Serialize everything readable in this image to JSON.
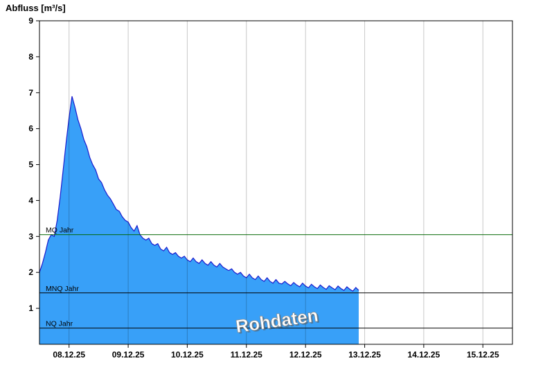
{
  "title": "Abfluss [m³/s]",
  "chart_data": {
    "type": "area",
    "series_name": "Abfluss",
    "title": "Abfluss [m³/s]",
    "x_domain": [
      7.5,
      15.5
    ],
    "y_domain": [
      0,
      9
    ],
    "t_start": 7.5,
    "t_step": 0.05,
    "values": [
      2.0,
      2.25,
      2.55,
      2.9,
      3.05,
      3.0,
      3.45,
      4.1,
      4.85,
      5.6,
      6.3,
      6.9,
      6.6,
      6.25,
      6.0,
      5.7,
      5.5,
      5.2,
      5.0,
      4.85,
      4.6,
      4.5,
      4.3,
      4.15,
      4.05,
      3.9,
      3.75,
      3.7,
      3.55,
      3.45,
      3.4,
      3.25,
      3.15,
      3.3,
      3.05,
      2.95,
      2.9,
      2.95,
      2.8,
      2.75,
      2.8,
      2.65,
      2.6,
      2.7,
      2.55,
      2.5,
      2.55,
      2.45,
      2.4,
      2.45,
      2.35,
      2.3,
      2.4,
      2.3,
      2.25,
      2.35,
      2.25,
      2.2,
      2.3,
      2.2,
      2.15,
      2.25,
      2.15,
      2.1,
      2.05,
      2.1,
      2.0,
      1.95,
      2.0,
      1.9,
      1.85,
      1.95,
      1.85,
      1.8,
      1.9,
      1.8,
      1.75,
      1.85,
      1.75,
      1.7,
      1.8,
      1.7,
      1.68,
      1.75,
      1.68,
      1.63,
      1.72,
      1.65,
      1.6,
      1.7,
      1.62,
      1.57,
      1.67,
      1.6,
      1.55,
      1.65,
      1.58,
      1.53,
      1.63,
      1.57,
      1.52,
      1.62,
      1.55,
      1.5,
      1.6,
      1.53,
      1.48,
      1.58,
      1.5
    ],
    "x_ticks": [
      {
        "t": 8,
        "label": "08.12.25"
      },
      {
        "t": 9,
        "label": "09.12.25"
      },
      {
        "t": 10,
        "label": "10.12.25"
      },
      {
        "t": 11,
        "label": "11.12.25"
      },
      {
        "t": 12,
        "label": "12.12.25"
      },
      {
        "t": 13,
        "label": "13.12.25"
      },
      {
        "t": 14,
        "label": "14.12.25"
      },
      {
        "t": 15,
        "label": "15.12.25"
      }
    ],
    "y_ticks": [
      1,
      2,
      3,
      4,
      5,
      6,
      7,
      8,
      9
    ],
    "reference_lines": [
      {
        "label": "MQ Jahr",
        "value": 3.05,
        "color": "#006600"
      },
      {
        "label": "MNQ Jahr",
        "value": 1.43,
        "color": "#000000"
      },
      {
        "label": "NQ Jahr",
        "value": 0.45,
        "color": "#000000"
      }
    ],
    "watermark": "Rohdaten",
    "grid": true,
    "legend": "none",
    "colors": {
      "fill": "#38a0f8",
      "line": "#1a1acd",
      "grid": "#c9c9c9",
      "axis": "#000000",
      "mq_line": "#006600"
    }
  }
}
